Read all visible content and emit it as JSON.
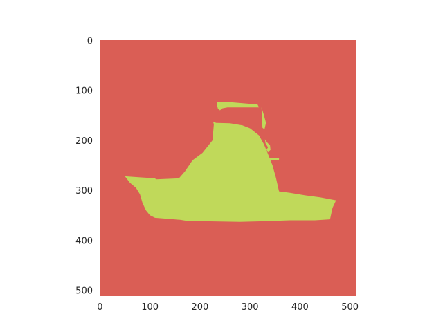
{
  "chart_data": {
    "type": "heatmap",
    "title": "",
    "xlabel": "",
    "ylabel": "",
    "xlim": [
      0,
      511
    ],
    "ylim": [
      511,
      0
    ],
    "grid": false,
    "x_ticks": [
      "0",
      "100",
      "200",
      "300",
      "400",
      "500"
    ],
    "y_ticks": [
      "0",
      "100",
      "200",
      "300",
      "400",
      "500"
    ],
    "x_tick_values": [
      0,
      100,
      200,
      300,
      400,
      500
    ],
    "y_tick_values": [
      0,
      100,
      200,
      300,
      400,
      500
    ],
    "colors": {
      "background": "#da5e55",
      "mask": "#c0d95a"
    },
    "mask_regions": [
      {
        "name": "main-body",
        "points": [
          [
            50,
            272
          ],
          [
            80,
            274
          ],
          [
            110,
            276
          ],
          [
            112,
            278
          ],
          [
            158,
            276
          ],
          [
            170,
            262
          ],
          [
            185,
            240
          ],
          [
            205,
            225
          ],
          [
            225,
            200
          ],
          [
            228,
            165
          ],
          [
            260,
            166
          ],
          [
            285,
            170
          ],
          [
            300,
            176
          ],
          [
            318,
            190
          ],
          [
            328,
            208
          ],
          [
            335,
            225
          ],
          [
            345,
            250
          ],
          [
            352,
            275
          ],
          [
            358,
            302
          ],
          [
            380,
            305
          ],
          [
            410,
            310
          ],
          [
            440,
            314
          ],
          [
            472,
            320
          ],
          [
            465,
            335
          ],
          [
            460,
            358
          ],
          [
            430,
            360
          ],
          [
            400,
            360
          ],
          [
            380,
            360
          ],
          [
            320,
            362
          ],
          [
            280,
            363
          ],
          [
            220,
            362
          ],
          [
            200,
            362
          ],
          [
            180,
            362
          ],
          [
            160,
            359
          ],
          [
            110,
            355
          ],
          [
            100,
            350
          ],
          [
            92,
            340
          ],
          [
            85,
            325
          ],
          [
            80,
            308
          ],
          [
            72,
            295
          ],
          [
            60,
            285
          ]
        ]
      },
      {
        "name": "top-strip",
        "points": [
          [
            234,
            124
          ],
          [
            265,
            124
          ],
          [
            300,
            127
          ],
          [
            315,
            128
          ],
          [
            318,
            134
          ],
          [
            300,
            134
          ],
          [
            265,
            134
          ],
          [
            255,
            134
          ],
          [
            245,
            136
          ],
          [
            240,
            140
          ],
          [
            236,
            137
          ],
          [
            234,
            130
          ]
        ]
      },
      {
        "name": "mast",
        "points": [
          [
            323,
            134
          ],
          [
            328,
            150
          ],
          [
            332,
            165
          ],
          [
            329,
            178
          ],
          [
            325,
            175
          ],
          [
            324,
            160
          ]
        ]
      },
      {
        "name": "hook",
        "points": [
          [
            330,
            198
          ],
          [
            334,
            204
          ],
          [
            340,
            210
          ],
          [
            341,
            219
          ],
          [
            336,
            224
          ],
          [
            333,
            219
          ],
          [
            336,
            214
          ],
          [
            331,
            206
          ]
        ]
      },
      {
        "name": "spar",
        "points": [
          [
            338,
            235
          ],
          [
            358,
            235
          ],
          [
            358,
            239
          ],
          [
            338,
            239
          ]
        ]
      },
      {
        "name": "notch",
        "points": [
          [
            226,
            165
          ],
          [
            230,
            163
          ],
          [
            232,
            166
          ],
          [
            229,
            168
          ]
        ]
      }
    ]
  }
}
